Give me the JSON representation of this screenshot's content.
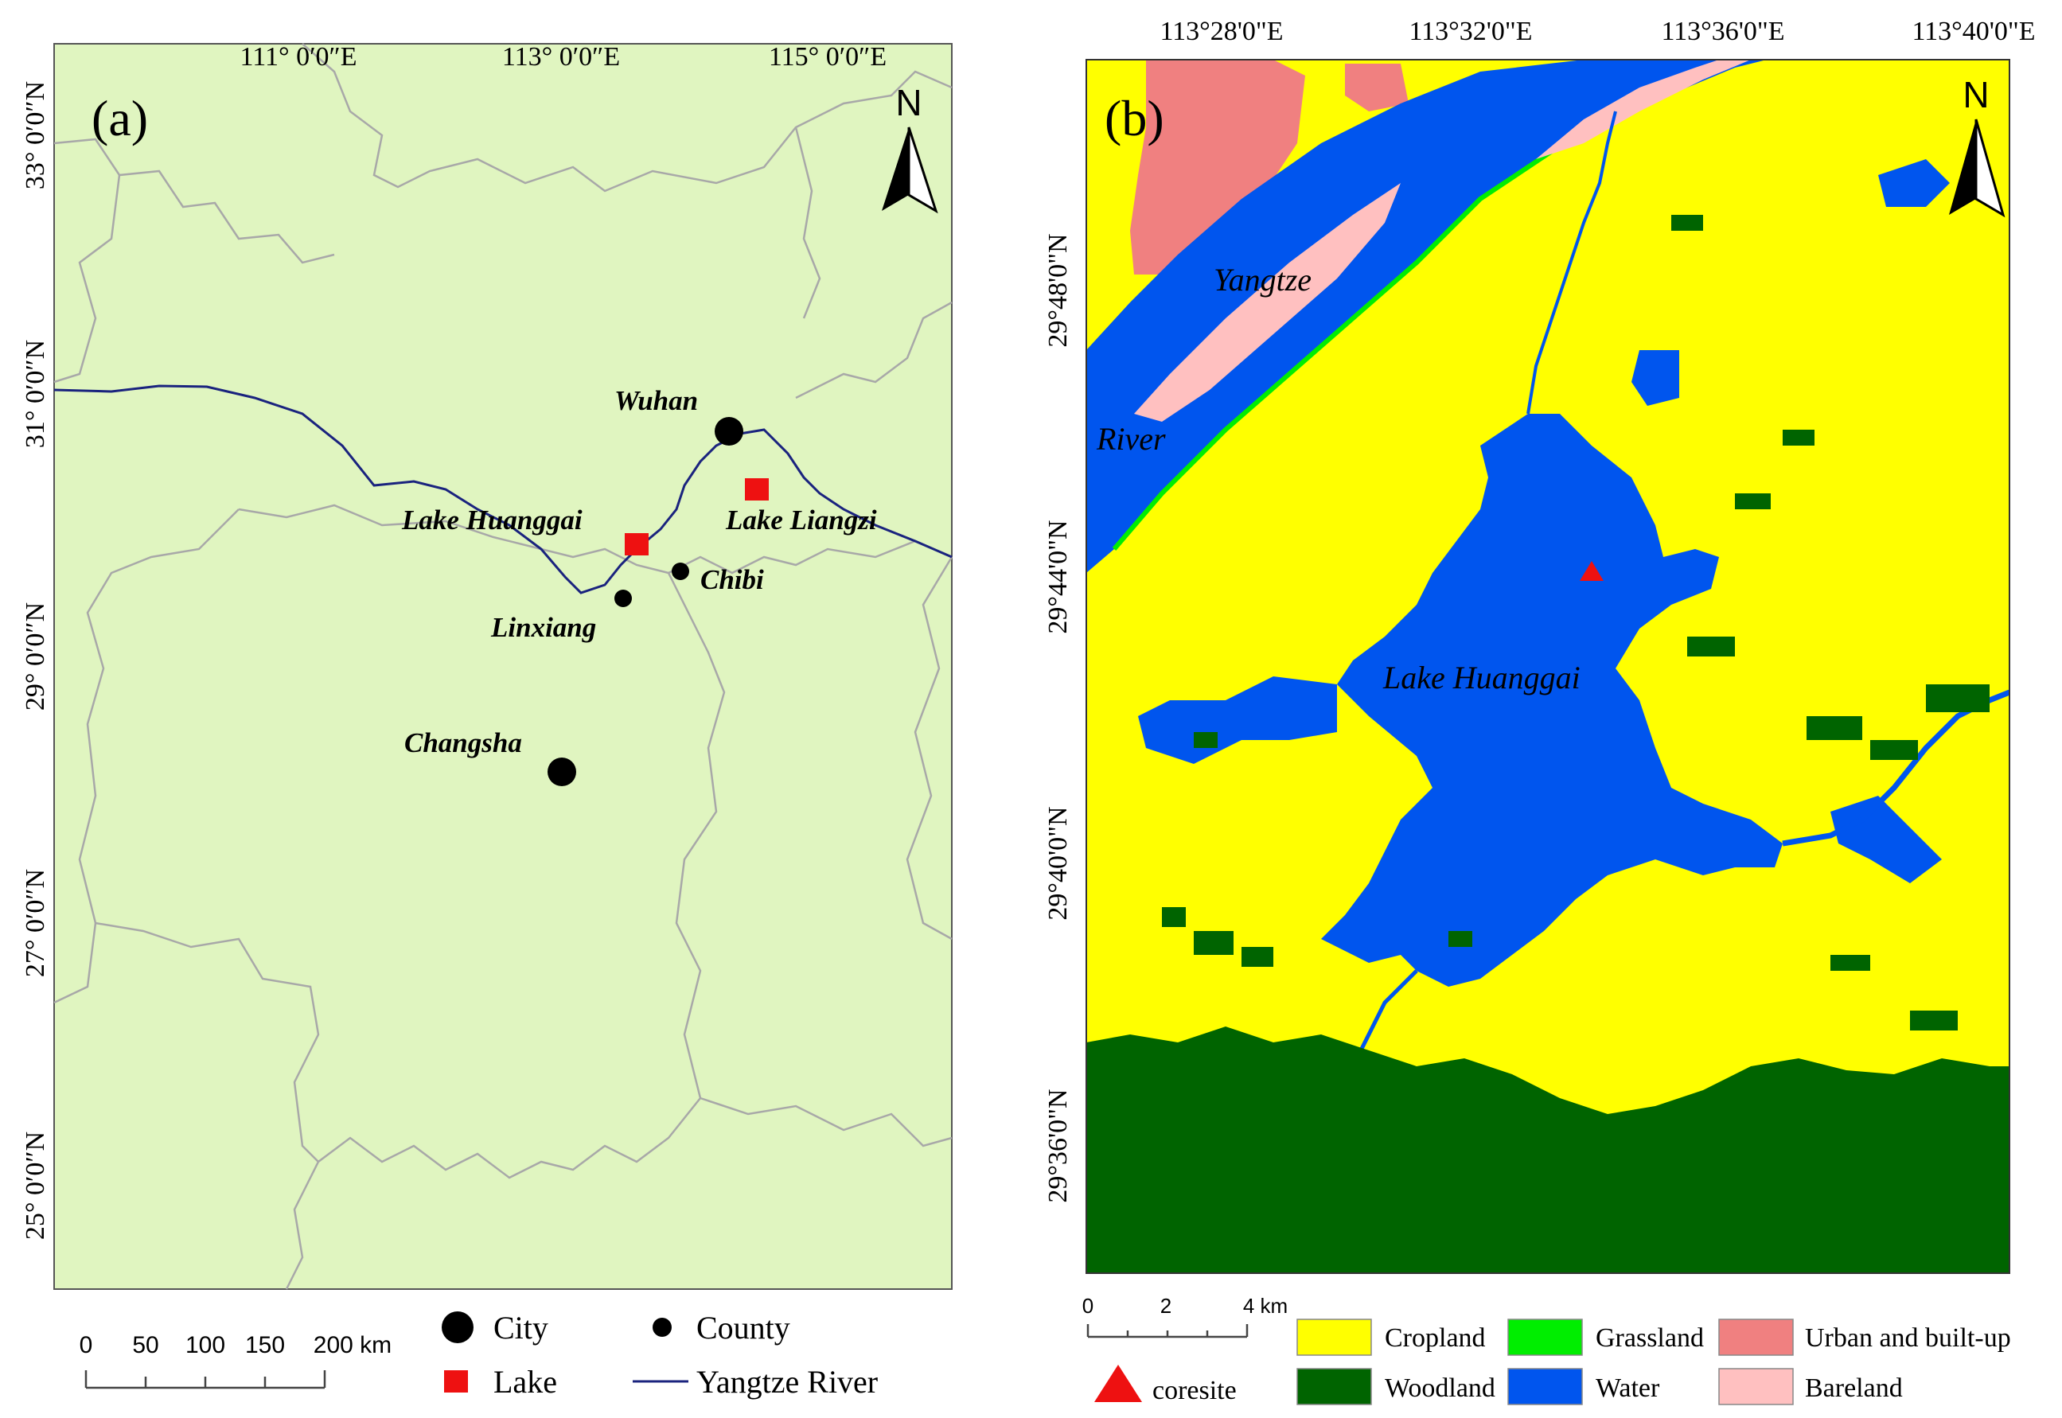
{
  "panel_a": {
    "label": "(a)",
    "lon_ticks": [
      "111° 0′0″E",
      "113° 0′0″E",
      "115° 0′0″E"
    ],
    "lat_ticks": [
      "33° 0′0″N",
      "31° 0′0″N",
      "29° 0′0″N",
      "27° 0′0″N",
      "25° 0′0″N"
    ],
    "north": "N",
    "places": {
      "wuhan": "Wuhan",
      "lake_liangzi": "Lake Liangzi",
      "lake_huanggai": "Lake Huanggai",
      "chibi": "Chibi",
      "linxiang": "Linxiang",
      "changsha": "Changsha"
    },
    "scale_labels": [
      "0",
      "50",
      "100",
      "150",
      "200 km"
    ],
    "legend": {
      "city": "City",
      "county": "County",
      "lake": "Lake",
      "river": "Yangtze River"
    }
  },
  "panel_b": {
    "label": "(b)",
    "lon_ticks": [
      "113°28'0\"E",
      "113°32'0\"E",
      "113°36'0\"E",
      "113°40'0\"E"
    ],
    "lat_ticks": [
      "29°48'0\"N",
      "29°44'0\"N",
      "29°40'0\"N",
      "29°36'0\"N"
    ],
    "north": "N",
    "places": {
      "yangtze": "Yangtze",
      "river": "River",
      "lake": "Lake Huanggai"
    },
    "scale_labels": [
      "0",
      "2",
      "4 km"
    ],
    "legend": {
      "coresite": "coresite",
      "cropland": "Cropland",
      "woodland": "Woodland",
      "grassland": "Grassland",
      "water": "Water",
      "urban": "Urban and built-up",
      "bareland": "Bareland"
    },
    "colors": {
      "cropland": "#ffff00",
      "woodland": "#006400",
      "grassland": "#00ee00",
      "water": "#0055ee",
      "urban": "#f08080",
      "bareland": "#ffc0c0",
      "coresite": "#ee1111"
    }
  },
  "colors": {
    "map_a_bg": "#e0f5c0",
    "boundary": "#a8a8a8",
    "river": "#1a237e",
    "lake_marker": "#ee1111"
  }
}
